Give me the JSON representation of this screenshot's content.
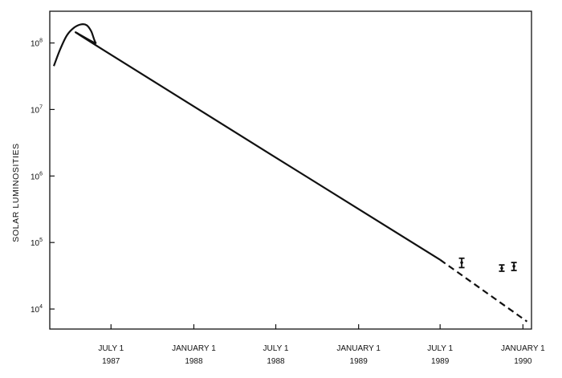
{
  "chart_data": {
    "type": "line",
    "title": "",
    "xlabel": "",
    "ylabel": "SOLAR LUMINOSITIES",
    "yscale": "log",
    "ylim": [
      5000,
      300000000
    ],
    "xlim": [
      "1987-02-15",
      "1990-01-20"
    ],
    "grid": false,
    "x_ticks": [
      {
        "date": "1987-07-01",
        "line1": "JULY 1",
        "line2": "1987"
      },
      {
        "date": "1988-01-01",
        "line1": "JANUARY 1",
        "line2": "1988"
      },
      {
        "date": "1988-07-01",
        "line1": "JULY 1",
        "line2": "1988"
      },
      {
        "date": "1989-01-01",
        "line1": "JANUARY 1",
        "line2": "1989"
      },
      {
        "date": "1989-07-01",
        "line1": "JULY 1",
        "line2": "1989"
      },
      {
        "date": "1990-01-01",
        "line1": "JANUARY 1",
        "line2": "1990"
      }
    ],
    "y_ticks": [
      {
        "value": 10000,
        "base": "10",
        "exp": "4"
      },
      {
        "value": 100000,
        "base": "10",
        "exp": "5"
      },
      {
        "value": 1000000,
        "base": "10",
        "exp": "6"
      },
      {
        "value": 10000000,
        "base": "10",
        "exp": "7"
      },
      {
        "value": 100000000,
        "base": "10",
        "exp": "8"
      }
    ],
    "series": [
      {
        "style": "solid",
        "points": [
          {
            "x": "1987-02-24",
            "y": 45000000
          },
          {
            "x": "1987-03-10",
            "y": 80000000
          },
          {
            "x": "1987-03-25",
            "y": 130000000
          },
          {
            "x": "1987-04-10",
            "y": 170000000
          },
          {
            "x": "1987-04-25",
            "y": 190000000
          },
          {
            "x": "1987-05-08",
            "y": 185000000
          },
          {
            "x": "1987-05-18",
            "y": 150000000
          },
          {
            "x": "1987-05-28",
            "y": 100000000
          },
          {
            "x": "1987-06-12",
            "y": 80000000
          },
          {
            "x": "1989-07-01",
            "y": 55000
          }
        ]
      },
      {
        "style": "dashed",
        "points": [
          {
            "x": "1989-07-01",
            "y": 55000
          },
          {
            "x": "1990-01-10",
            "y": 6500
          }
        ]
      },
      {
        "style": "points-with-error-bars",
        "points": [
          {
            "x": "1989-08-18",
            "y": 50000,
            "ylow": 42000,
            "yhigh": 58000
          },
          {
            "x": "1989-11-15",
            "y": 41000,
            "ylow": 37000,
            "yhigh": 46000
          },
          {
            "x": "1989-12-12",
            "y": 44000,
            "ylow": 38000,
            "yhigh": 50000
          }
        ]
      }
    ]
  }
}
